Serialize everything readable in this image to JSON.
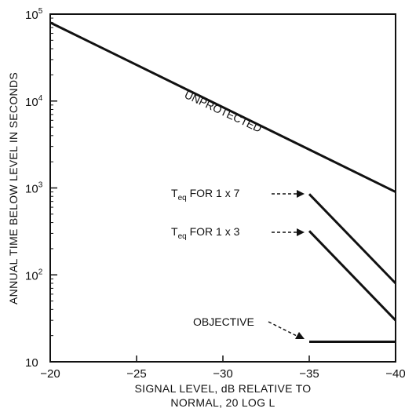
{
  "chart_data": {
    "type": "line",
    "title": "",
    "xlabel_lines": [
      "SIGNAL LEVEL, dB RELATIVE TO",
      "NORMAL, 20 LOG L"
    ],
    "ylabel": "ANNUAL TIME BELOW LEVEL IN SECONDS",
    "x_scale": "linear",
    "y_scale": "log",
    "xlim": [
      -20,
      -40
    ],
    "ylim": [
      10,
      100000
    ],
    "x_ticks": [
      {
        "value": -20,
        "label": "−20"
      },
      {
        "value": -25,
        "label": "−25"
      },
      {
        "value": -30,
        "label": "−30"
      },
      {
        "value": -35,
        "label": "−35"
      },
      {
        "value": -40,
        "label": "−40"
      }
    ],
    "y_ticks": [
      {
        "value": 10,
        "base": "10",
        "exp": ""
      },
      {
        "value": 100,
        "base": "10",
        "exp": "2"
      },
      {
        "value": 1000,
        "base": "10",
        "exp": "3"
      },
      {
        "value": 10000,
        "base": "10",
        "exp": "4"
      },
      {
        "value": 100000,
        "base": "10",
        "exp": "5"
      }
    ],
    "grid": false,
    "series": [
      {
        "name": "UNPROTECTED",
        "x": [
          -20,
          -40
        ],
        "y": [
          80000,
          900
        ]
      },
      {
        "name": "Teq FOR 1 x 7",
        "x": [
          -35,
          -40
        ],
        "y": [
          850,
          80
        ]
      },
      {
        "name": "Teq FOR 1 x 3",
        "x": [
          -35,
          -40
        ],
        "y": [
          320,
          30
        ]
      },
      {
        "name": "OBJECTIVE",
        "x": [
          -35,
          -40
        ],
        "y": [
          17,
          17
        ]
      }
    ],
    "annotations": {
      "unprotected": "UNPROTECTED",
      "teq7": {
        "t": "T",
        "sub": "eq",
        "rest": " FOR 1 x 7"
      },
      "teq3": {
        "t": "T",
        "sub": "eq",
        "rest": " FOR 1 x 3"
      },
      "objective": "OBJECTIVE"
    }
  }
}
